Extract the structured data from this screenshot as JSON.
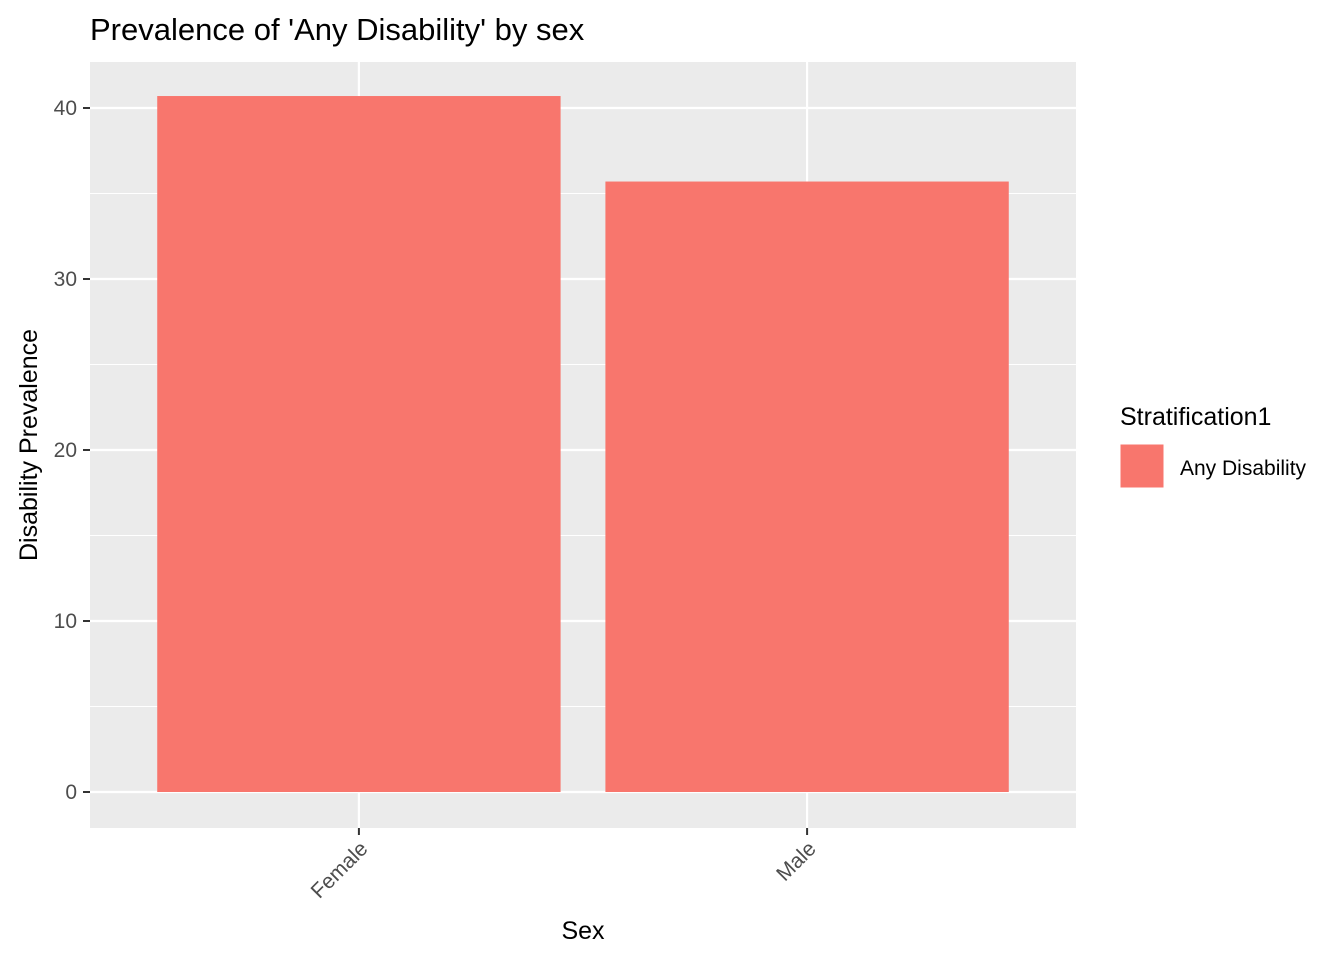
{
  "chart_data": {
    "type": "bar",
    "title": "Prevalence of 'Any Disability' by sex",
    "xlabel": "Sex",
    "ylabel": "Disability Prevalence",
    "categories": [
      "Female",
      "Male"
    ],
    "series": [
      {
        "name": "Any Disability",
        "values": [
          40.7,
          35.7
        ],
        "color": "#F8766D"
      }
    ],
    "ylim": [
      0,
      42.7
    ],
    "yticks": [
      "0",
      "10",
      "20",
      "30",
      "40"
    ],
    "grid": true,
    "panel_color": "#EBEBEB",
    "legend": {
      "title": "Stratification1",
      "position": "right",
      "items": [
        "Any Disability"
      ]
    }
  }
}
